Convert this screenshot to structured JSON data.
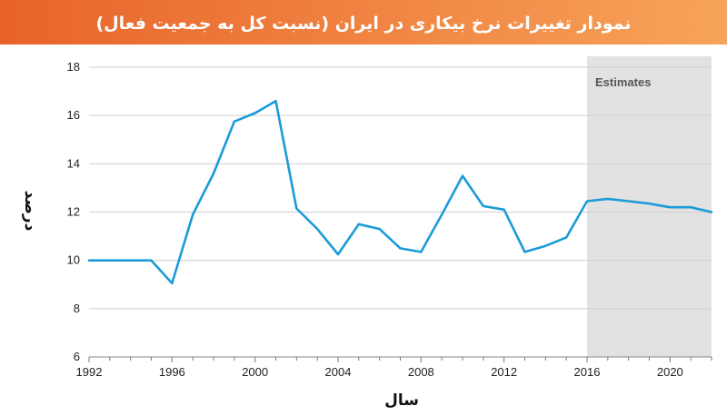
{
  "colors": {
    "header_start": "#e8632a",
    "header_end": "#f7a35a",
    "line": "#1b9bd8",
    "shade": "#e2e2e2",
    "grid": "#cfcfcf"
  },
  "chart_data": {
    "type": "line",
    "title": "نمودار تغییرات نرخ بیکاری در ایران (نسبت کل به جمعیت فعال)",
    "xlabel": "سال",
    "ylabel": "درصد",
    "xlim": [
      1992,
      2022
    ],
    "ylim": [
      6,
      18
    ],
    "x_ticks": [
      1992,
      1996,
      2000,
      2004,
      2008,
      2012,
      2016,
      2020
    ],
    "y_ticks": [
      6,
      8,
      10,
      12,
      14,
      16,
      18
    ],
    "grid": true,
    "shaded_region": {
      "from": 2016,
      "to": 2022,
      "label": "Estimates"
    },
    "series": [
      {
        "x": [
          1992,
          1993,
          1994,
          1995,
          1996,
          1997,
          1998,
          1999,
          2000,
          2001,
          2002,
          2003,
          2004,
          2005,
          2006,
          2007,
          2008,
          2009,
          2010,
          2011,
          2012,
          2013,
          2014,
          2015,
          2016,
          2017,
          2018,
          2019,
          2020,
          2021,
          2022
        ],
        "values": [
          10.0,
          10.0,
          10.0,
          10.0,
          9.05,
          11.9,
          13.6,
          15.75,
          16.1,
          16.6,
          12.15,
          11.3,
          10.25,
          11.5,
          11.3,
          10.5,
          10.35,
          11.9,
          13.5,
          12.25,
          12.1,
          10.35,
          10.6,
          10.95,
          12.45,
          12.55,
          12.45,
          12.35,
          12.2,
          12.2,
          12.0
        ]
      }
    ]
  }
}
